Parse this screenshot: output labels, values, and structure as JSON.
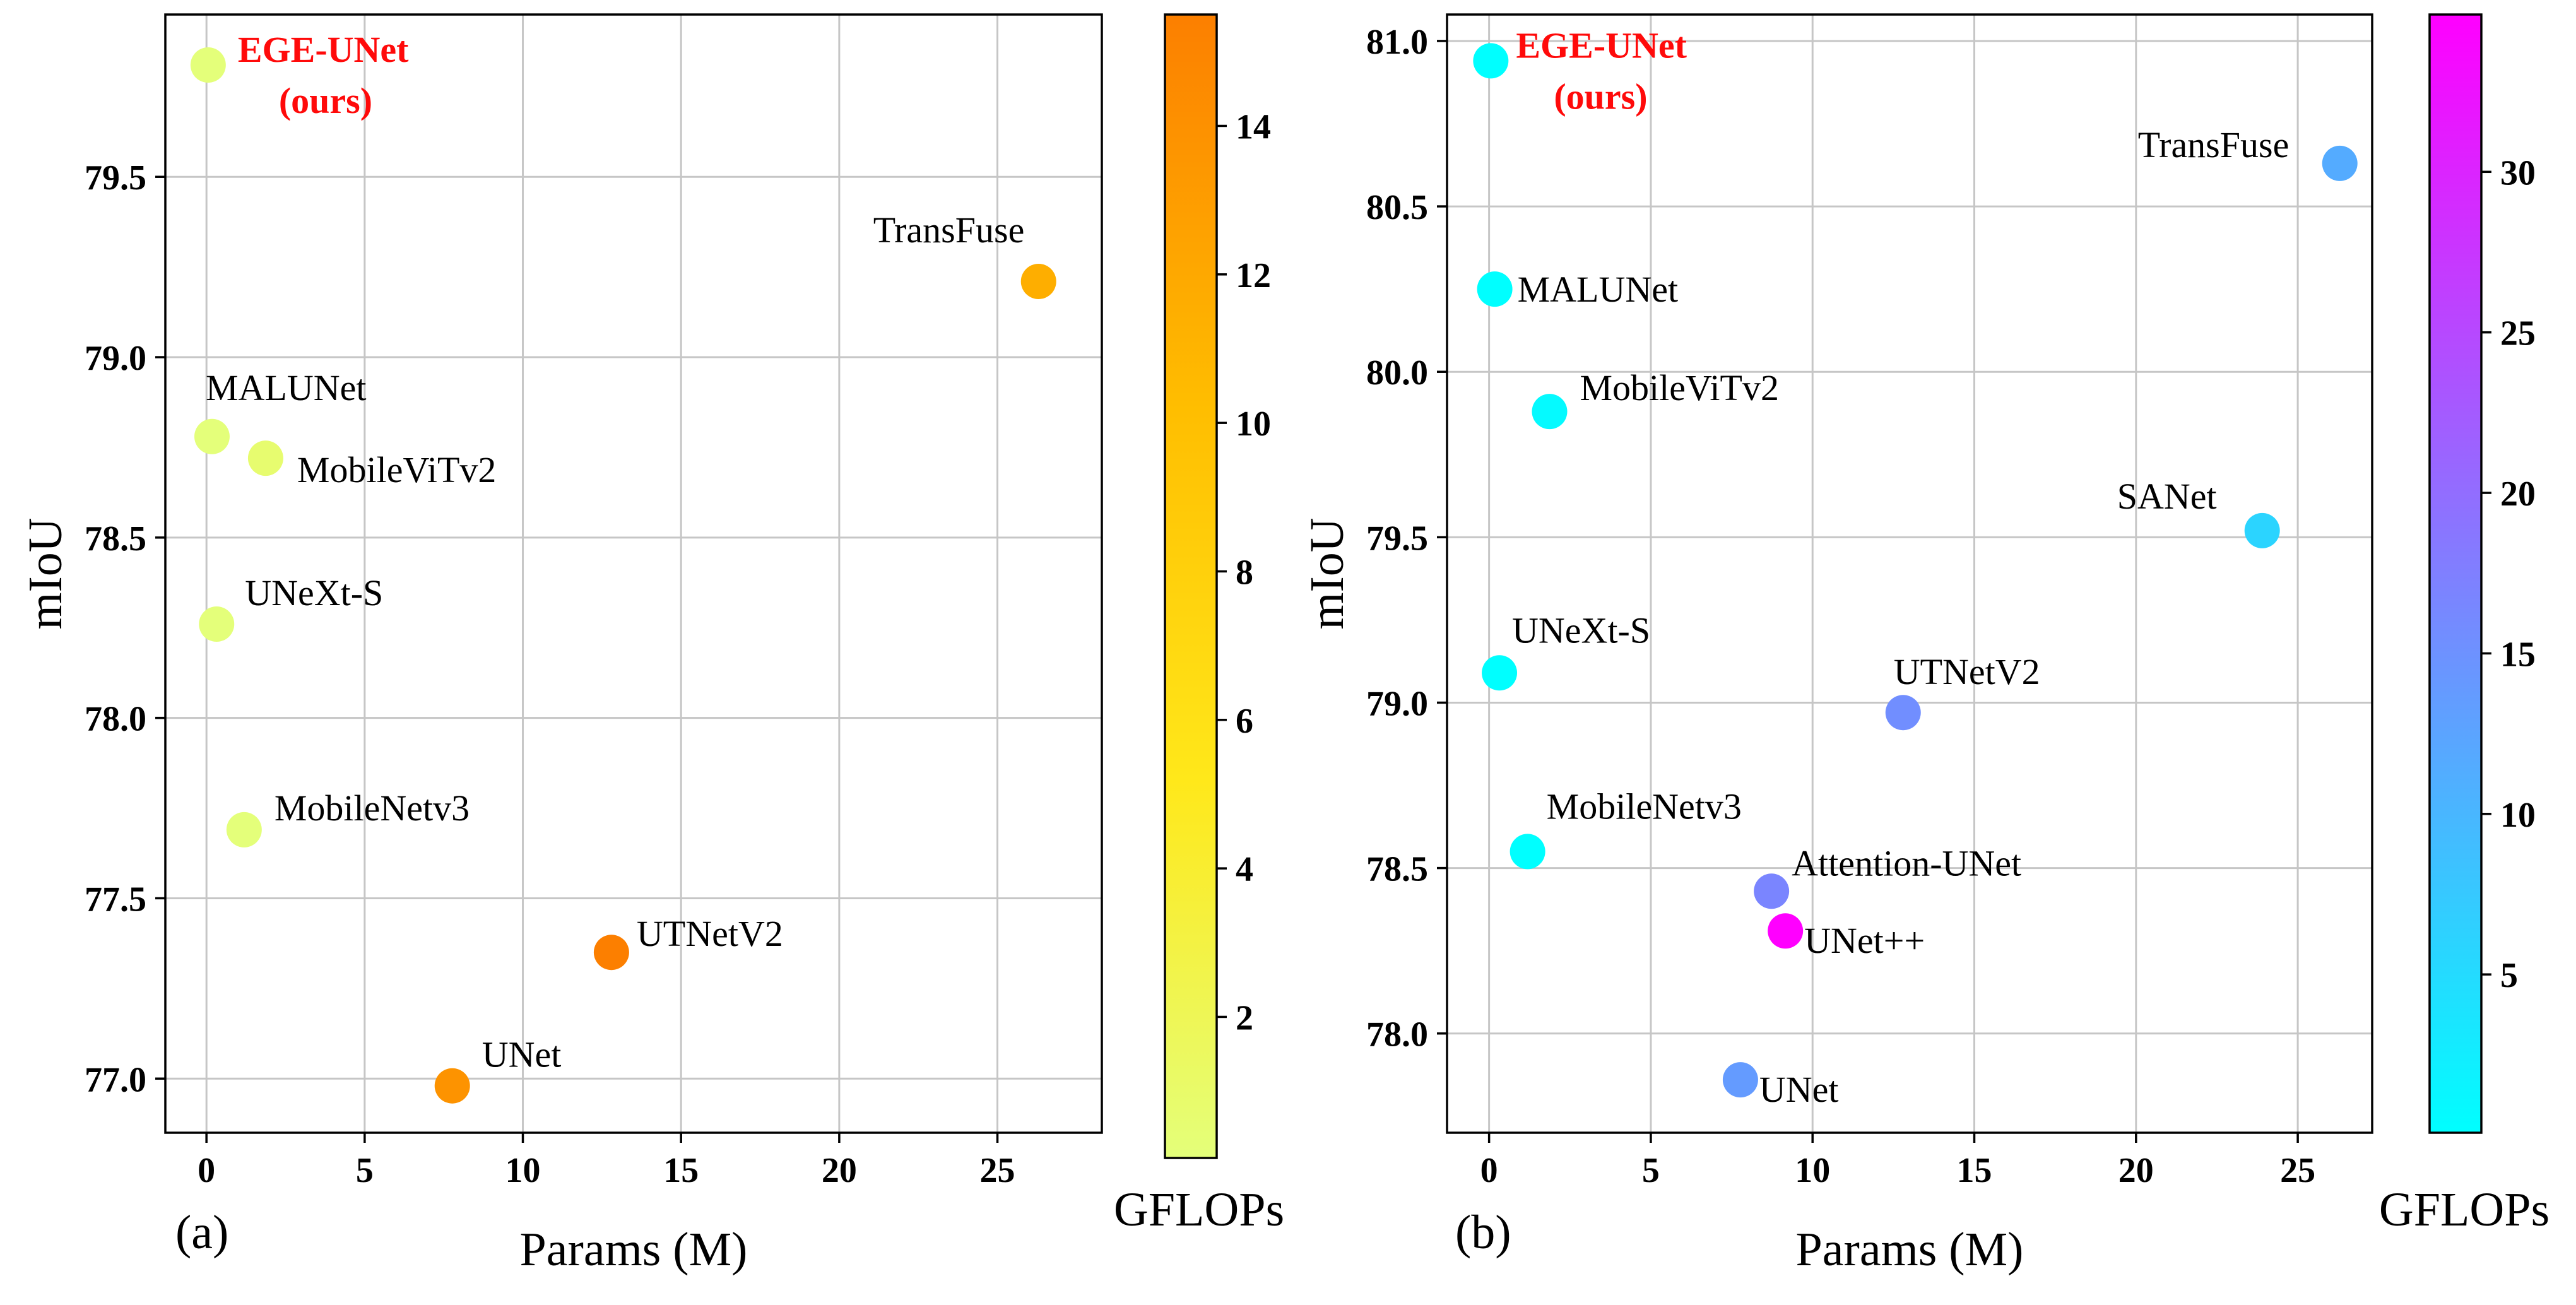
{
  "chart_data": [
    {
      "type": "scatter",
      "panel": "(a)",
      "xlabel": "Params (M)",
      "ylabel": "mIoU",
      "xlim": [
        -1.3,
        28.3
      ],
      "ylim": [
        76.85,
        79.95
      ],
      "xticks": [
        0,
        5,
        10,
        15,
        20,
        25
      ],
      "yticks": [
        77.0,
        77.5,
        78.0,
        78.5,
        79.0,
        79.5
      ],
      "grid": true,
      "colorbar": {
        "label": "GFLOPs",
        "colormap": "Wistia",
        "range": [
          0.1,
          15.5
        ],
        "ticks": [
          2,
          4,
          6,
          8,
          10,
          12,
          14
        ]
      },
      "points": [
        {
          "name": "EGE-UNet",
          "name2": "(ours)",
          "x": 0.053,
          "y": 79.81,
          "gflops": 0.072,
          "highlight": true
        },
        {
          "name": "TransFuse",
          "x": 26.3,
          "y": 79.21,
          "gflops": 11.5
        },
        {
          "name": "MALUNet",
          "x": 0.175,
          "y": 78.78,
          "gflops": 0.083
        },
        {
          "name": "MobileViTv2",
          "x": 1.87,
          "y": 78.72,
          "gflops": 0.7
        },
        {
          "name": "UNeXt-S",
          "x": 0.32,
          "y": 78.26,
          "gflops": 0.1
        },
        {
          "name": "MobileNetv3",
          "x": 1.19,
          "y": 77.69,
          "gflops": 0.1
        },
        {
          "name": "UTNetV2",
          "x": 12.8,
          "y": 77.35,
          "gflops": 15.5
        },
        {
          "name": "UNet",
          "x": 7.77,
          "y": 76.98,
          "gflops": 13.78
        }
      ]
    },
    {
      "type": "scatter",
      "panel": "(b)",
      "xlabel": "Params (M)",
      "ylabel": "mIoU",
      "xlim": [
        -1.3,
        27.3
      ],
      "ylim": [
        77.7,
        81.08
      ],
      "xticks": [
        0,
        5,
        10,
        15,
        20,
        25
      ],
      "yticks": [
        78.0,
        78.5,
        79.0,
        79.5,
        80.0,
        80.5,
        81.0
      ],
      "grid": true,
      "colorbar": {
        "label": "GFLOPs",
        "colormap": "cool",
        "range": [
          0.07,
          34.9
        ],
        "ticks": [
          5,
          10,
          15,
          20,
          25,
          30
        ]
      },
      "points": [
        {
          "name": "EGE-UNet",
          "name2": "(ours)",
          "x": 0.053,
          "y": 80.94,
          "gflops": 0.072,
          "highlight": true
        },
        {
          "name": "TransFuse",
          "x": 26.3,
          "y": 80.63,
          "gflops": 11.5
        },
        {
          "name": "MALUNet",
          "x": 0.175,
          "y": 80.25,
          "gflops": 0.083
        },
        {
          "name": "MobileViTv2",
          "x": 1.87,
          "y": 79.88,
          "gflops": 0.7
        },
        {
          "name": "SANet",
          "x": 23.9,
          "y": 79.52,
          "gflops": 5.99
        },
        {
          "name": "UNeXt-S",
          "x": 0.32,
          "y": 79.09,
          "gflops": 0.1
        },
        {
          "name": "UTNetV2",
          "x": 12.8,
          "y": 78.97,
          "gflops": 15.5
        },
        {
          "name": "MobileNetv3",
          "x": 1.19,
          "y": 78.55,
          "gflops": 0.1
        },
        {
          "name": "Attention-UNet",
          "x": 8.73,
          "y": 78.43,
          "gflops": 16.71
        },
        {
          "name": "UNet++",
          "x": 9.16,
          "y": 78.31,
          "gflops": 34.9
        },
        {
          "name": "UNet",
          "x": 7.77,
          "y": 77.86,
          "gflops": 13.78
        }
      ]
    }
  ]
}
